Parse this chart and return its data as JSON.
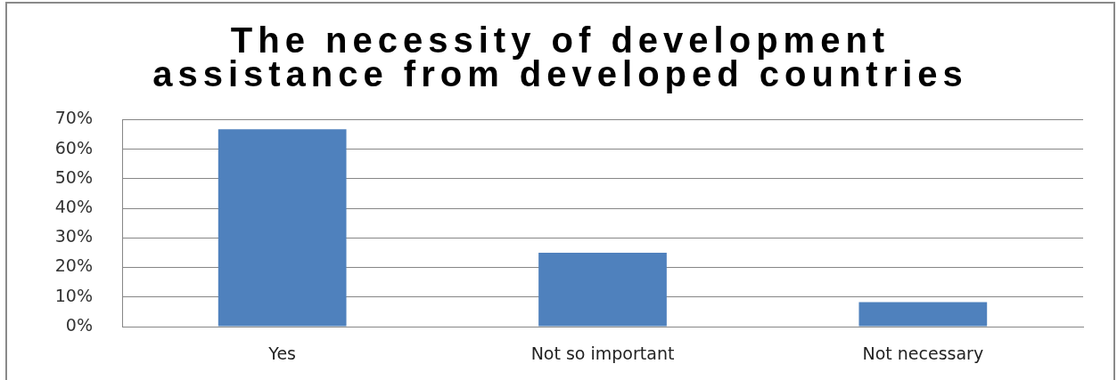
{
  "chart_data": {
    "type": "bar",
    "title": "The necessity of development assistance from developed countries",
    "categories": [
      "Yes",
      "Not so important",
      "Not necessary"
    ],
    "values": [
      66.7,
      25,
      8.3
    ],
    "color": "#4f81bd",
    "ylim": [
      0,
      70
    ],
    "yticks": [
      {
        "value": 0,
        "label": "0%"
      },
      {
        "value": 10,
        "label": "10%"
      },
      {
        "value": 20,
        "label": "20%"
      },
      {
        "value": 30,
        "label": "30%"
      },
      {
        "value": 40,
        "label": "40%"
      },
      {
        "value": 50,
        "label": "50%"
      },
      {
        "value": 60,
        "label": "60%"
      },
      {
        "value": 70,
        "label": "70%"
      }
    ],
    "grid": "y"
  }
}
